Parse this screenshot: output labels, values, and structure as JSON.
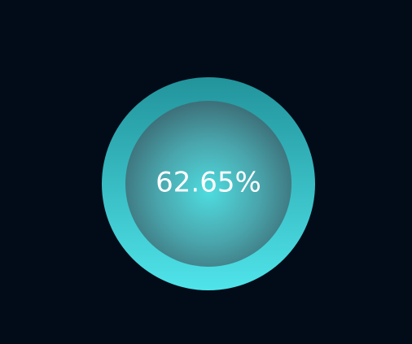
{
  "chart_data": {
    "type": "gauge",
    "value": 62.65,
    "value_label": "62.65%",
    "colors": {
      "background": "#020c19",
      "ring_top": "#22939b",
      "ring_bottom": "#4fe4ea",
      "inner_center": "#4edcdf",
      "inner_edge": "#3d6f78",
      "text": "#ffffff"
    }
  }
}
